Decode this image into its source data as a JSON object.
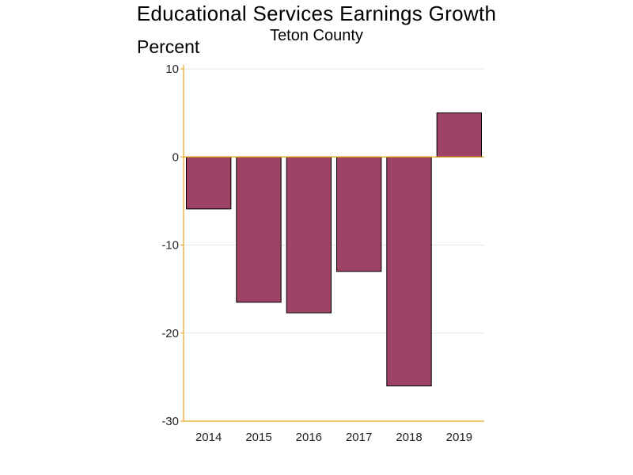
{
  "chart_data": {
    "type": "bar",
    "title": "Educational Services Earnings Growth",
    "subtitle": "Teton County",
    "ylabel": "Percent",
    "xlabel": "",
    "categories": [
      "2014",
      "2015",
      "2016",
      "2017",
      "2018",
      "2019"
    ],
    "values": [
      -5.9,
      -16.5,
      -17.7,
      -13.0,
      -26.0,
      5.0
    ],
    "ylim": [
      -30,
      10
    ],
    "yticks": [
      10,
      0,
      -10,
      -20,
      -30
    ],
    "grid": true,
    "legend": "none",
    "colors": {
      "bar_fill": "#9e4266",
      "bar_stroke": "#000000",
      "axis": "#e8a317",
      "grid": "#e6e6e6"
    }
  }
}
